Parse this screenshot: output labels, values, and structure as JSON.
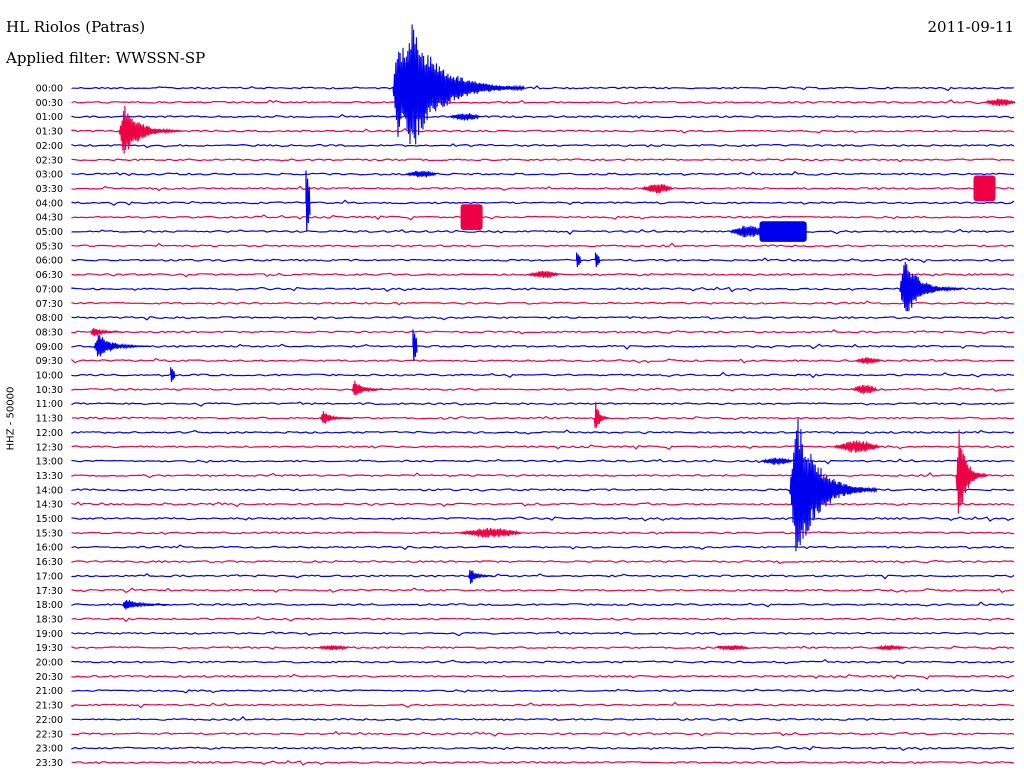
{
  "header": {
    "station": "HL Riolos (Patras)",
    "date": "2011-09-11",
    "filter": "Applied filter: WWSSN-SP"
  },
  "channel_label": "HHZ - 50000",
  "colors": {
    "blue": "#0000ee",
    "red": "#ee0044",
    "background": "#ffffff",
    "text": "#000000"
  },
  "chart_data": {
    "type": "line",
    "title": "HL Riolos (Patras)",
    "subtitle": "Applied filter: WWSSN-SP",
    "ylabel": "HHZ - 50000",
    "xlabel": "",
    "grid": false,
    "trace_colors": [
      "blue",
      "red"
    ],
    "rows": [
      "00:00",
      "00:30",
      "01:00",
      "01:30",
      "02:00",
      "02:30",
      "03:00",
      "03:30",
      "04:00",
      "04:30",
      "05:00",
      "05:30",
      "06:00",
      "06:30",
      "07:00",
      "07:30",
      "08:00",
      "08:30",
      "09:00",
      "09:30",
      "10:00",
      "10:30",
      "11:00",
      "11:30",
      "12:00",
      "12:30",
      "13:00",
      "13:30",
      "14:00",
      "14:30",
      "15:00",
      "15:30",
      "16:00",
      "16:30",
      "17:00",
      "17:30",
      "18:00",
      "18:30",
      "19:00",
      "19:30",
      "20:00",
      "20:30",
      "21:00",
      "21:30",
      "22:00",
      "22:30",
      "23:00",
      "23:30"
    ],
    "minutes_per_row": 30,
    "events": [
      {
        "row": "00:00",
        "minute": 10.4,
        "amplitude": 5.5,
        "duration": 4.0,
        "kind": "quake"
      },
      {
        "row": "00:00",
        "minute": 10.2,
        "amplitude": 4.5,
        "duration": 2.0,
        "kind": "quake"
      },
      {
        "row": "01:30",
        "minute": 1.5,
        "amplitude": 2.2,
        "duration": 2.0,
        "kind": "quake"
      },
      {
        "row": "01:00",
        "minute": 12.0,
        "amplitude": 0.3,
        "duration": 1.0,
        "kind": "burst"
      },
      {
        "row": "00:30",
        "minute": 29.0,
        "amplitude": 0.3,
        "duration": 1.0,
        "kind": "burst"
      },
      {
        "row": "03:00",
        "minute": 10.6,
        "amplitude": 0.3,
        "duration": 1.0,
        "kind": "burst"
      },
      {
        "row": "03:30",
        "minute": 18.1,
        "amplitude": 0.4,
        "duration": 1.0,
        "kind": "burst"
      },
      {
        "row": "03:30",
        "minute": 29.0,
        "amplitude": 1.0,
        "duration": 0.7,
        "kind": "block"
      },
      {
        "row": "04:30",
        "minute": 12.7,
        "amplitude": 1.0,
        "duration": 0.7,
        "kind": "block"
      },
      {
        "row": "05:00",
        "minute": 20.9,
        "amplitude": 0.5,
        "duration": 1.2,
        "kind": "burst"
      },
      {
        "row": "05:00",
        "minute": 22.6,
        "amplitude": 0.8,
        "duration": 1.5,
        "kind": "block"
      },
      {
        "row": "04:00",
        "minute": 7.5,
        "amplitude": 2.5,
        "duration": 0.2,
        "kind": "spike"
      },
      {
        "row": "06:00",
        "minute": 16.1,
        "amplitude": 0.6,
        "duration": 0.3,
        "kind": "spike"
      },
      {
        "row": "06:00",
        "minute": 16.7,
        "amplitude": 0.6,
        "duration": 0.3,
        "kind": "spike"
      },
      {
        "row": "06:30",
        "minute": 14.5,
        "amplitude": 0.3,
        "duration": 1.0,
        "kind": "burst"
      },
      {
        "row": "07:00",
        "minute": 26.3,
        "amplitude": 2.5,
        "duration": 2.0,
        "kind": "quake"
      },
      {
        "row": "08:30",
        "minute": 0.6,
        "amplitude": 0.5,
        "duration": 1.0,
        "kind": "quake"
      },
      {
        "row": "09:00",
        "minute": 0.7,
        "amplitude": 1.0,
        "duration": 1.8,
        "kind": "quake"
      },
      {
        "row": "09:00",
        "minute": 10.9,
        "amplitude": 1.3,
        "duration": 0.2,
        "kind": "spike"
      },
      {
        "row": "10:00",
        "minute": 3.2,
        "amplitude": 0.6,
        "duration": 0.3,
        "kind": "spike"
      },
      {
        "row": "10:30",
        "minute": 8.9,
        "amplitude": 0.8,
        "duration": 1.0,
        "kind": "quake"
      },
      {
        "row": "11:30",
        "minute": 7.9,
        "amplitude": 0.6,
        "duration": 1.0,
        "kind": "quake"
      },
      {
        "row": "11:30",
        "minute": 16.6,
        "amplitude": 1.4,
        "duration": 0.5,
        "kind": "quake"
      },
      {
        "row": "14:00",
        "minute": 22.8,
        "amplitude": 6.0,
        "duration": 2.8,
        "kind": "quake"
      },
      {
        "row": "13:30",
        "minute": 28.1,
        "amplitude": 4.0,
        "duration": 1.0,
        "kind": "quake"
      },
      {
        "row": "13:00",
        "minute": 21.9,
        "amplitude": 0.3,
        "duration": 1.0,
        "kind": "burst"
      },
      {
        "row": "12:30",
        "minute": 24.2,
        "amplitude": 0.5,
        "duration": 1.5,
        "kind": "burst"
      },
      {
        "row": "15:30",
        "minute": 12.3,
        "amplitude": 0.4,
        "duration": 2.0,
        "kind": "burst"
      },
      {
        "row": "17:00",
        "minute": 12.6,
        "amplitude": 0.7,
        "duration": 0.8,
        "kind": "quake"
      },
      {
        "row": "18:00",
        "minute": 1.6,
        "amplitude": 0.5,
        "duration": 1.5,
        "kind": "quake"
      },
      {
        "row": "19:30",
        "minute": 7.8,
        "amplitude": 0.2,
        "duration": 1.0,
        "kind": "burst"
      },
      {
        "row": "19:30",
        "minute": 20.5,
        "amplitude": 0.2,
        "duration": 1.0,
        "kind": "burst"
      },
      {
        "row": "19:30",
        "minute": 25.5,
        "amplitude": 0.2,
        "duration": 1.0,
        "kind": "burst"
      },
      {
        "row": "09:30",
        "minute": 24.9,
        "amplitude": 0.3,
        "duration": 0.8,
        "kind": "burst"
      },
      {
        "row": "10:30",
        "minute": 24.8,
        "amplitude": 0.4,
        "duration": 0.8,
        "kind": "burst"
      }
    ]
  }
}
